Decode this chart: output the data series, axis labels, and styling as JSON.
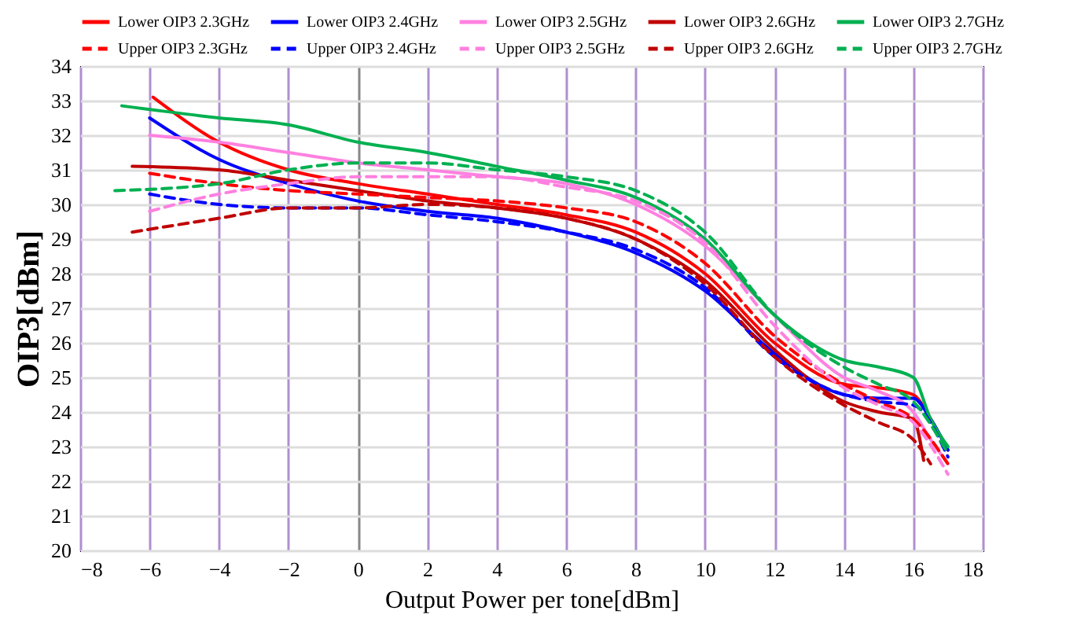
{
  "chart_data": {
    "type": "line",
    "xlabel": "Output Power per tone[dBm]",
    "ylabel": "OIP3[dBm]",
    "xlim": [
      -8,
      18
    ],
    "ylim": [
      20,
      34
    ],
    "xticks": [
      -8,
      -6,
      -4,
      -2,
      0,
      2,
      4,
      6,
      8,
      10,
      12,
      14,
      16,
      18
    ],
    "yticks": [
      20,
      21,
      22,
      23,
      24,
      25,
      26,
      27,
      28,
      29,
      30,
      31,
      32,
      33,
      34
    ],
    "grid": true,
    "legend": "top",
    "series": [
      {
        "name": "Lower OIP3 2.3GHz",
        "color": "#ff0000",
        "line_style": "solid",
        "x": [
          -5.9,
          -4,
          -2,
          0,
          2,
          4,
          6,
          8,
          10,
          12,
          14,
          15,
          16,
          16.5,
          17
        ],
        "values": [
          33.1,
          31.8,
          31.0,
          30.6,
          30.3,
          30.0,
          29.7,
          29.2,
          28.0,
          26.0,
          24.8,
          24.7,
          24.5,
          23.8,
          22.9
        ]
      },
      {
        "name": "Lower OIP3 2.4GHz",
        "color": "#0000ff",
        "line_style": "solid",
        "x": [
          -6,
          -4,
          -2,
          0,
          2,
          4,
          6,
          8,
          10,
          12,
          14,
          15,
          16,
          16.5,
          17
        ],
        "values": [
          32.5,
          31.3,
          30.6,
          30.1,
          29.8,
          29.6,
          29.2,
          28.6,
          27.5,
          25.7,
          24.5,
          24.4,
          24.4,
          23.8,
          22.9
        ]
      },
      {
        "name": "Lower OIP3 2.5GHz",
        "color": "#ff80e0",
        "line_style": "solid",
        "x": [
          -6,
          -4,
          -2,
          0,
          2,
          4,
          6,
          8,
          10,
          12,
          14,
          15,
          16,
          16.5,
          17
        ],
        "values": [
          32.0,
          31.8,
          31.5,
          31.2,
          31.0,
          30.8,
          30.6,
          30.0,
          28.8,
          26.8,
          25.0,
          24.6,
          24.0,
          23.2,
          22.5
        ]
      },
      {
        "name": "Lower OIP3 2.6GHz",
        "color": "#c00000",
        "line_style": "solid",
        "x": [
          -6.5,
          -4,
          -2,
          0,
          2,
          4,
          6,
          8,
          10,
          12,
          14,
          15,
          16,
          16.3
        ],
        "values": [
          31.1,
          31.0,
          30.7,
          30.4,
          30.1,
          29.9,
          29.6,
          29.0,
          27.8,
          25.8,
          24.3,
          24.0,
          23.8,
          22.6
        ]
      },
      {
        "name": "Lower OIP3 2.7GHz",
        "color": "#00b050",
        "line_style": "solid",
        "x": [
          -6.8,
          -4,
          -2,
          0,
          2,
          4,
          6,
          8,
          10,
          12,
          14,
          15,
          16,
          16.5,
          17
        ],
        "values": [
          32.85,
          32.5,
          32.3,
          31.8,
          31.5,
          31.1,
          30.7,
          30.2,
          29.0,
          26.8,
          25.5,
          25.3,
          25.0,
          23.8,
          23.0
        ]
      },
      {
        "name": "Upper OIP3 2.3GHz",
        "color": "#ff0000",
        "line_style": "dashed",
        "x": [
          -6,
          -4,
          -2,
          0,
          2,
          4,
          6,
          8,
          10,
          12,
          14,
          15,
          16,
          17
        ],
        "values": [
          30.9,
          30.6,
          30.4,
          30.3,
          30.2,
          30.1,
          29.9,
          29.5,
          28.3,
          26.2,
          24.8,
          24.3,
          23.8,
          22.5
        ]
      },
      {
        "name": "Upper OIP3 2.4GHz",
        "color": "#0000ff",
        "line_style": "dashed",
        "x": [
          -6,
          -4,
          -2,
          0,
          2,
          4,
          6,
          8,
          10,
          12,
          14,
          15,
          16,
          17
        ],
        "values": [
          30.3,
          30.0,
          29.9,
          29.9,
          29.7,
          29.5,
          29.2,
          28.7,
          27.6,
          25.6,
          24.5,
          24.3,
          24.2,
          22.7
        ]
      },
      {
        "name": "Upper OIP3 2.5GHz",
        "color": "#ff80e0",
        "line_style": "dashed",
        "x": [
          -6,
          -4,
          -2,
          0,
          2,
          4,
          6,
          8,
          10,
          12,
          14,
          15,
          16,
          17
        ],
        "values": [
          29.8,
          30.3,
          30.6,
          30.8,
          30.8,
          30.8,
          30.5,
          30.1,
          28.9,
          26.5,
          24.7,
          24.2,
          23.7,
          22.2
        ]
      },
      {
        "name": "Upper OIP3 2.6GHz",
        "color": "#c00000",
        "line_style": "dashed",
        "x": [
          -6.5,
          -4,
          -2,
          0,
          2,
          4,
          6,
          8,
          10,
          12,
          14,
          15,
          16,
          16.5
        ],
        "values": [
          29.2,
          29.6,
          29.9,
          29.9,
          30.0,
          29.9,
          29.6,
          29.0,
          27.7,
          25.6,
          24.2,
          23.7,
          23.2,
          22.5
        ]
      },
      {
        "name": "Upper OIP3 2.7GHz",
        "color": "#00b050",
        "line_style": "dashed",
        "x": [
          -7,
          -4,
          -2,
          0,
          2,
          4,
          6,
          8,
          10,
          12,
          14,
          15,
          16,
          17
        ],
        "values": [
          30.4,
          30.6,
          31.0,
          31.2,
          31.2,
          31.0,
          30.8,
          30.4,
          29.2,
          26.8,
          25.3,
          24.8,
          24.3,
          22.8
        ]
      }
    ]
  }
}
